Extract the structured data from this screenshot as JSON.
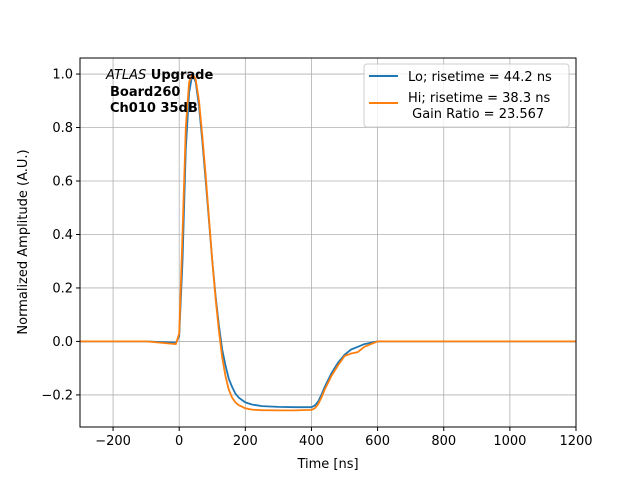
{
  "chart_data": {
    "type": "line",
    "xlabel": "Time [ns]",
    "ylabel": "Normalized Amplitude (A.U.)",
    "xlim": [
      -300,
      1200
    ],
    "ylim": [
      -0.32,
      1.06
    ],
    "x_ticks": [
      -200,
      0,
      200,
      400,
      600,
      800,
      1000,
      1200
    ],
    "x_tick_labels": [
      "−200",
      "0",
      "200",
      "400",
      "600",
      "800",
      "1000",
      "1200"
    ],
    "y_ticks": [
      -0.2,
      0.0,
      0.2,
      0.4,
      0.6,
      0.8,
      1.0
    ],
    "y_tick_labels": [
      "−0.2",
      "0.0",
      "0.2",
      "0.4",
      "0.6",
      "0.8",
      "1.0"
    ],
    "grid": true,
    "legend_position": "top-right",
    "annotation": {
      "italic_part": "ATLAS",
      "bold_part": " Upgrade",
      "line2": "Board260",
      "line3": "Ch010 35dB"
    },
    "series": [
      {
        "name": "Lo; risetime = 44.2 ns",
        "color": "#1f77b4",
        "x": [
          -300,
          -100,
          -10,
          0,
          10,
          20,
          30,
          40,
          50,
          60,
          70,
          80,
          90,
          100,
          110,
          120,
          130,
          140,
          150,
          160,
          170,
          180,
          200,
          220,
          250,
          300,
          350,
          400,
          410,
          420,
          430,
          440,
          460,
          480,
          500,
          520,
          540,
          560,
          580,
          600,
          650,
          800,
          1000,
          1200
        ],
        "y": [
          0,
          0,
          -0.005,
          0.02,
          0.3,
          0.72,
          0.93,
          1.0,
          0.97,
          0.88,
          0.75,
          0.6,
          0.45,
          0.3,
          0.17,
          0.06,
          -0.03,
          -0.09,
          -0.14,
          -0.17,
          -0.195,
          -0.21,
          -0.228,
          -0.236,
          -0.242,
          -0.245,
          -0.246,
          -0.246,
          -0.24,
          -0.225,
          -0.2,
          -0.17,
          -0.12,
          -0.08,
          -0.05,
          -0.03,
          -0.02,
          -0.01,
          -0.005,
          0,
          0,
          0,
          0,
          0
        ]
      },
      {
        "name": "Hi; risetime = 38.3 ns\n Gain Ratio = 23.567",
        "color": "#ff7f0e",
        "x": [
          -300,
          -100,
          -10,
          0,
          10,
          20,
          30,
          40,
          50,
          60,
          70,
          80,
          90,
          100,
          110,
          120,
          130,
          140,
          150,
          160,
          170,
          180,
          200,
          220,
          250,
          300,
          350,
          400,
          410,
          420,
          430,
          440,
          460,
          480,
          500,
          520,
          540,
          560,
          580,
          600,
          650,
          800,
          1000,
          1200
        ],
        "y": [
          0,
          0,
          -0.01,
          0.03,
          0.4,
          0.8,
          0.97,
          1.0,
          0.98,
          0.9,
          0.77,
          0.62,
          0.46,
          0.3,
          0.16,
          0.04,
          -0.06,
          -0.13,
          -0.18,
          -0.21,
          -0.228,
          -0.238,
          -0.25,
          -0.255,
          -0.257,
          -0.258,
          -0.258,
          -0.256,
          -0.25,
          -0.235,
          -0.21,
          -0.18,
          -0.13,
          -0.09,
          -0.055,
          -0.045,
          -0.04,
          -0.02,
          -0.01,
          0,
          0,
          0,
          0,
          0
        ]
      }
    ]
  }
}
